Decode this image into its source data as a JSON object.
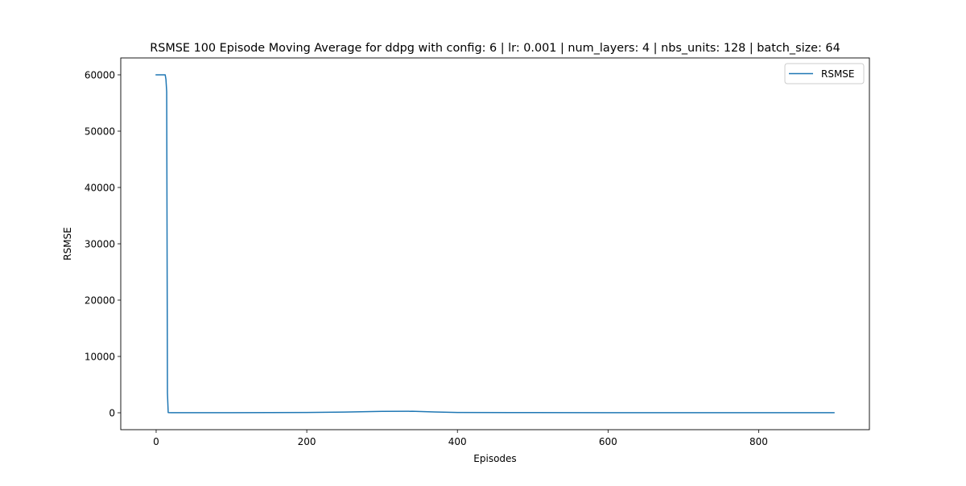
{
  "chart_data": {
    "type": "line",
    "title": "RSMSE 100 Episode Moving Average for ddpg with config: 6 | lr: 0.001 | num_layers: 4 | nbs_units: 128 | batch_size: 64",
    "xlabel": "Episodes",
    "ylabel": "RSMSE",
    "xlim": [
      -47,
      947
    ],
    "ylim": [
      -3000,
      63000
    ],
    "xticks": [
      0,
      200,
      400,
      600,
      800
    ],
    "yticks": [
      0,
      10000,
      20000,
      30000,
      40000,
      50000,
      60000
    ],
    "grid": false,
    "legend": {
      "location": "top-right",
      "entries": [
        "RSMSE"
      ]
    },
    "series": [
      {
        "name": "RSMSE",
        "color": "#1f77b4",
        "x": [
          0,
          5,
          10,
          12,
          13,
          14,
          15,
          16,
          20,
          50,
          100,
          150,
          200,
          250,
          300,
          340,
          370,
          400,
          500,
          600,
          700,
          800,
          900
        ],
        "y": [
          60000,
          60000,
          60000,
          60000,
          59200,
          57000,
          3500,
          40,
          20,
          20,
          25,
          30,
          50,
          120,
          250,
          260,
          150,
          60,
          30,
          20,
          15,
          12,
          10
        ]
      }
    ]
  }
}
